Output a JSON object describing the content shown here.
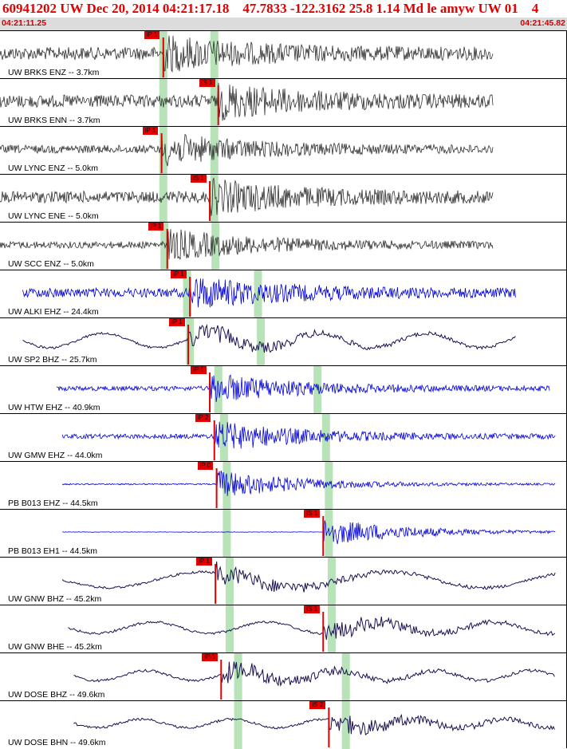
{
  "header": {
    "title": "60941202 UW Dec 20, 2014 04:21:17.18    47.7833 -122.3162 25.8 1.14 Md le amyw UW 01    4",
    "time_start": "04:21:11.25",
    "time_end": "04:21:45.82"
  },
  "colors": {
    "title": "#e00000",
    "pick": "#e00000",
    "highlight": "#b8e2b8",
    "trace_dark": "#2e2e2e",
    "trace_blue": "#0000dd",
    "trace_navy": "#1a1050"
  },
  "channels": [
    {
      "label": "UW BRKS ENZ -- 3.7km",
      "pick": "iP 1",
      "pick_t": 0.288,
      "band_t": 0.288,
      "band2_t": 0.378,
      "color": "trace_dark",
      "kind": "noise",
      "start": 0.0,
      "end": 0.87,
      "amp": 0.55,
      "period": 0
    },
    {
      "label": "UW BRKS ENN -- 3.7km",
      "pick": "iS 1",
      "pick_t": 0.385,
      "band_t": 0.288,
      "band2_t": 0.378,
      "color": "trace_dark",
      "kind": "noise",
      "start": 0.0,
      "end": 0.87,
      "amp": 0.55,
      "period": 0
    },
    {
      "label": "UW LYNC ENZ -- 5.0km",
      "pick": "iP 1",
      "pick_t": 0.285,
      "band_t": 0.288,
      "band2_t": 0.378,
      "color": "trace_dark",
      "kind": "noise",
      "start": 0.0,
      "end": 0.87,
      "amp": 0.35,
      "period": 0
    },
    {
      "label": "UW LYNC ENE -- 5.0km",
      "pick": "iS 1",
      "pick_t": 0.37,
      "band_t": 0.288,
      "band2_t": 0.378,
      "color": "trace_dark",
      "kind": "noise",
      "start": 0.0,
      "end": 0.87,
      "amp": 0.5,
      "period": 0
    },
    {
      "label": "UW SCC ENZ -- 5.0km",
      "pick": "iP 1",
      "pick_t": 0.295,
      "band_t": 0.29,
      "band2_t": 0.38,
      "color": "trace_dark",
      "kind": "noise",
      "start": 0.0,
      "end": 0.87,
      "amp": 0.3,
      "period": 0
    },
    {
      "label": "UW ALKI EHZ -- 24.4km",
      "pick": "iP 1",
      "pick_t": 0.335,
      "band_t": 0.33,
      "band2_t": 0.455,
      "color": "trace_blue",
      "kind": "noise",
      "start": 0.04,
      "end": 0.91,
      "amp": 0.4,
      "period": 0
    },
    {
      "label": "UW SP2 BHZ -- 25.7km",
      "pick": "iP 1",
      "pick_t": 0.332,
      "band_t": 0.335,
      "band2_t": 0.46,
      "color": "trace_navy",
      "kind": "wave",
      "start": 0.04,
      "end": 0.91,
      "amp": 0.5,
      "period": 0.19
    },
    {
      "label": "UW HTW EHZ -- 40.9km",
      "pick": "iP 1",
      "pick_t": 0.37,
      "band_t": 0.385,
      "band2_t": 0.56,
      "color": "trace_blue",
      "kind": "noise",
      "start": 0.1,
      "end": 0.97,
      "amp": 0.2,
      "period": 0
    },
    {
      "label": "UW GMW EHZ -- 44.0km",
      "pick": "iP 2",
      "pick_t": 0.378,
      "band_t": 0.395,
      "band2_t": 0.575,
      "color": "trace_blue",
      "kind": "noise",
      "start": 0.11,
      "end": 0.98,
      "amp": 0.2,
      "period": 0
    },
    {
      "label": "PB B013 EHZ -- 44.5km",
      "pick": "iP 0",
      "pick_t": 0.382,
      "band_t": 0.4,
      "band2_t": 0.58,
      "color": "trace_blue",
      "kind": "noise",
      "start": 0.11,
      "end": 0.98,
      "amp": 0.06,
      "period": 0
    },
    {
      "label": "PB B013 EH1 -- 44.5km",
      "pick": "iS 1",
      "pick_t": 0.57,
      "band_t": 0.4,
      "band2_t": 0.58,
      "color": "trace_blue",
      "kind": "noise",
      "start": 0.11,
      "end": 0.98,
      "amp": 0.02,
      "period": 0
    },
    {
      "label": "UW GNW BHZ -- 45.2km",
      "pick": "iP 1",
      "pick_t": 0.38,
      "band_t": 0.405,
      "band2_t": 0.585,
      "color": "trace_navy",
      "kind": "wave",
      "start": 0.11,
      "end": 0.98,
      "amp": 0.55,
      "period": 0.33
    },
    {
      "label": "UW GNW BHE -- 45.2km",
      "pick": "iS 1",
      "pick_t": 0.57,
      "band_t": 0.405,
      "band2_t": 0.585,
      "color": "trace_navy",
      "kind": "wave",
      "start": 0.12,
      "end": 0.98,
      "amp": 0.4,
      "period": 0.2
    },
    {
      "label": "UW DOSE BHZ -- 49.6km",
      "pick": "iP 1",
      "pick_t": 0.39,
      "band_t": 0.42,
      "band2_t": 0.61,
      "color": "trace_navy",
      "kind": "wave",
      "start": 0.13,
      "end": 0.98,
      "amp": 0.35,
      "period": 0.17
    },
    {
      "label": "UW DOSE BHN -- 49.6km",
      "pick": "iS 2",
      "pick_t": 0.58,
      "band_t": 0.42,
      "band2_t": 0.61,
      "color": "trace_navy",
      "kind": "wave",
      "start": 0.13,
      "end": 0.98,
      "amp": 0.3,
      "period": 0.16
    }
  ]
}
